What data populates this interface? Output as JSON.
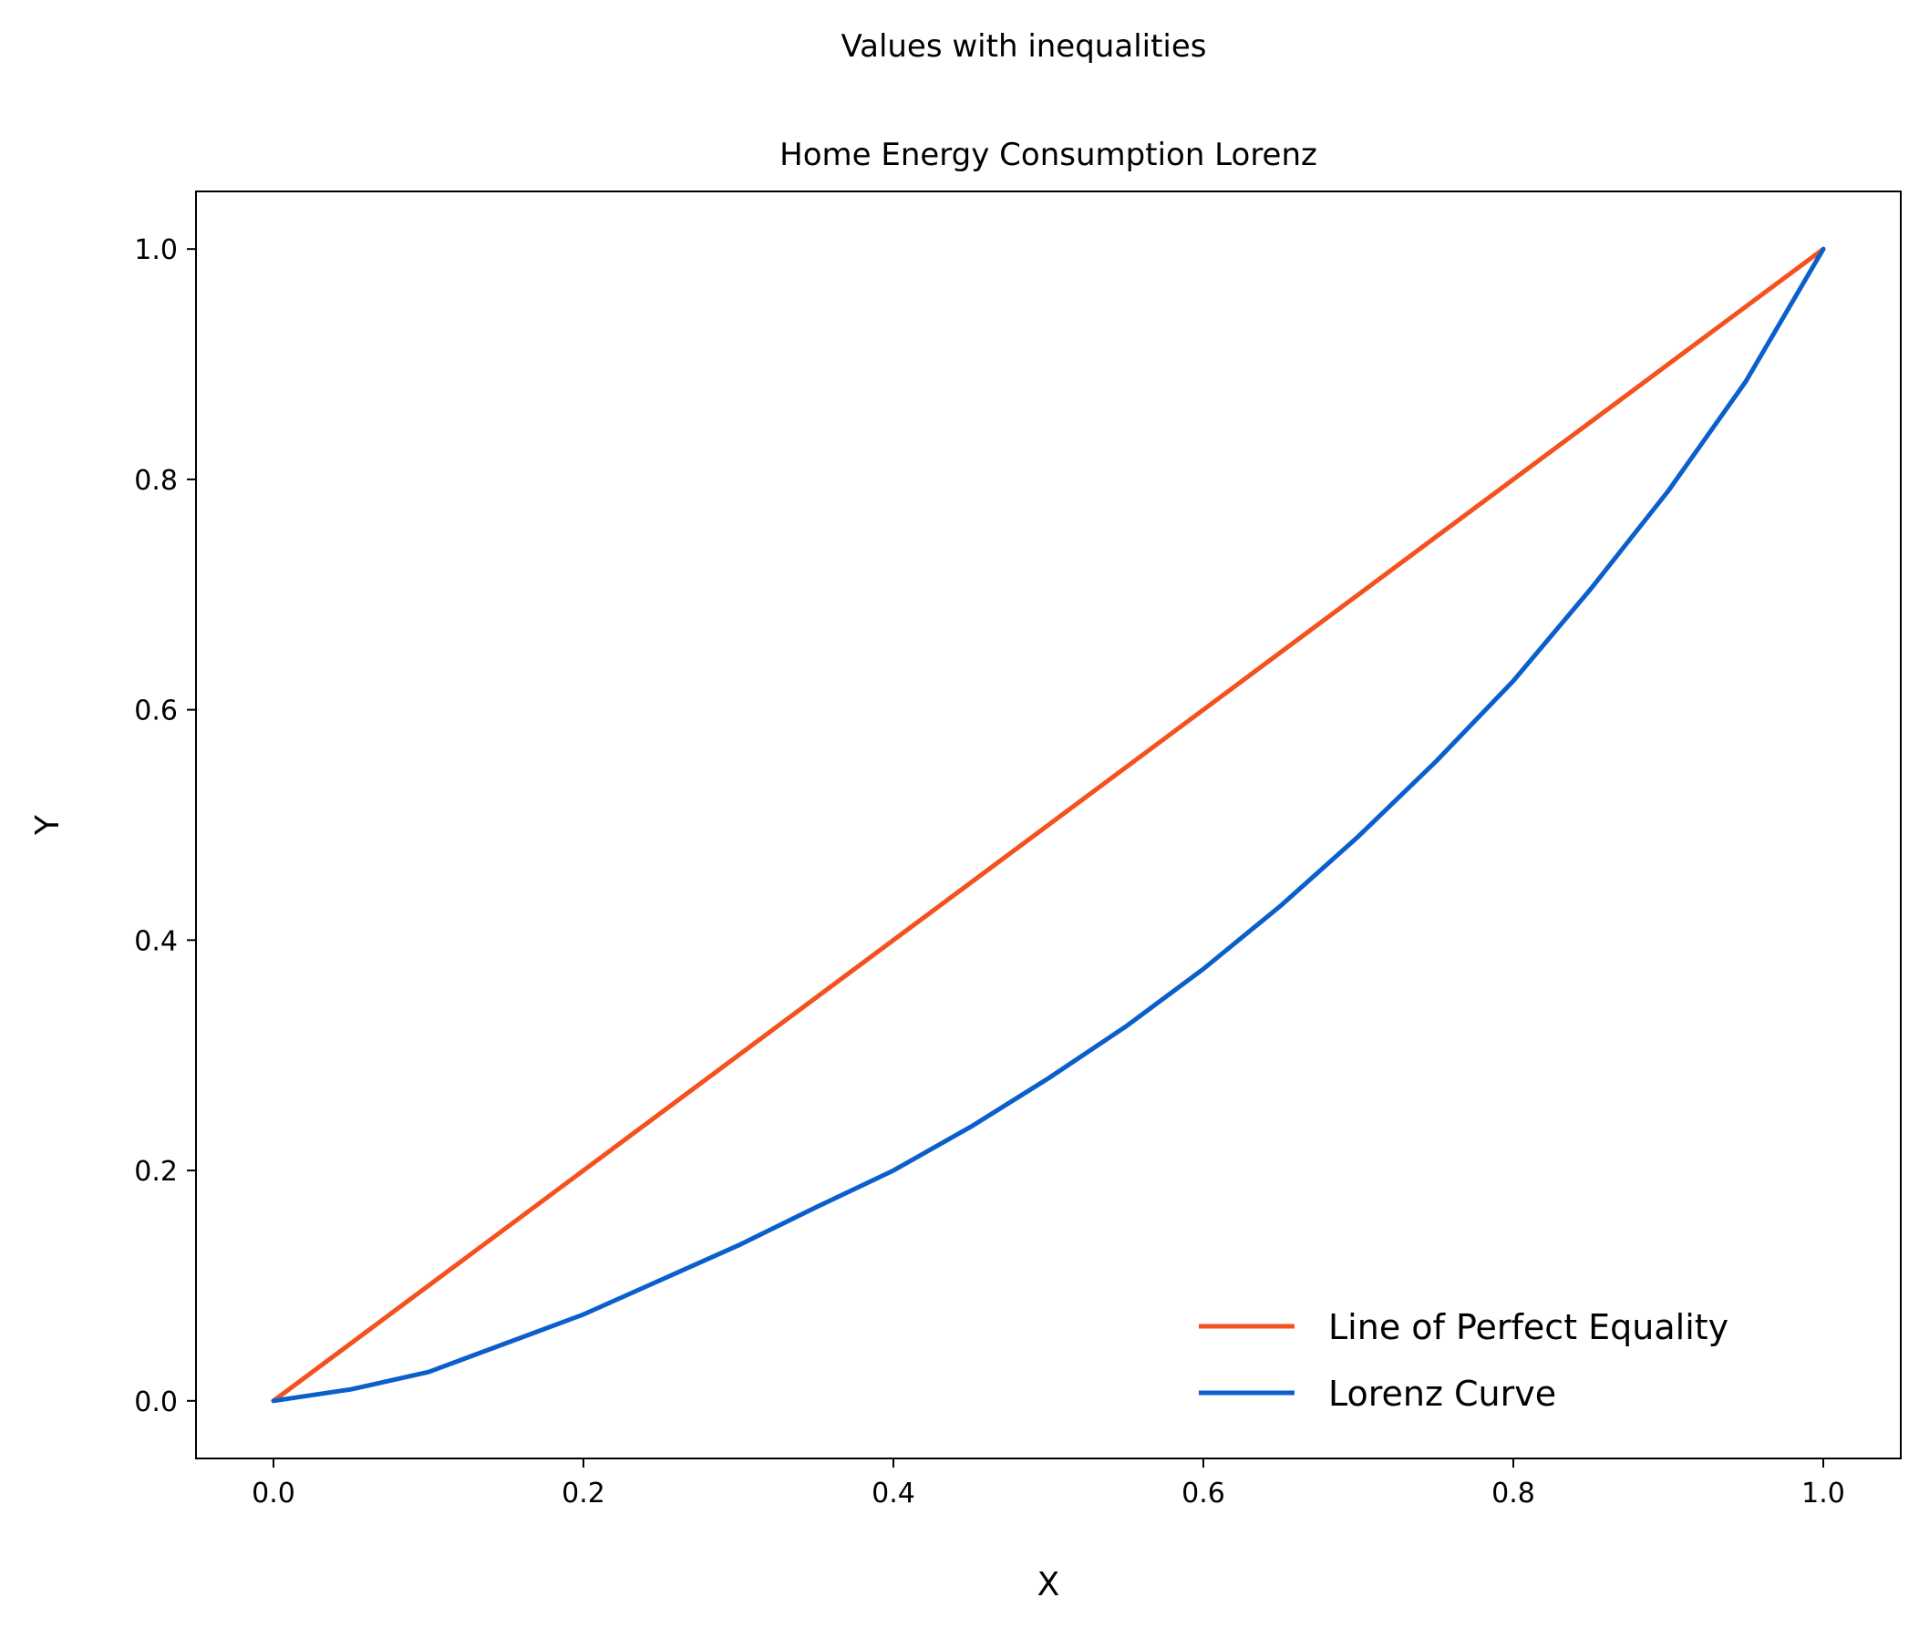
{
  "chart_data": {
    "type": "line",
    "suptitle": "Values with inequalities",
    "title": "Home Energy Consumption Lorenz",
    "xlabel": "X",
    "ylabel": "Y",
    "xlim": [
      -0.05,
      1.05
    ],
    "ylim": [
      -0.05,
      1.05
    ],
    "x_ticks": [
      0.0,
      0.2,
      0.4,
      0.6,
      0.8,
      1.0
    ],
    "x_tick_labels": [
      "0.0",
      "0.2",
      "0.4",
      "0.6",
      "0.8",
      "1.0"
    ],
    "y_ticks": [
      0.0,
      0.2,
      0.4,
      0.6,
      0.8,
      1.0
    ],
    "y_tick_labels": [
      "0.0",
      "0.2",
      "0.4",
      "0.6",
      "0.8",
      "1.0"
    ],
    "grid": false,
    "legend_position": "lower right",
    "series": [
      {
        "name": "Line of Perfect Equality",
        "color": "#f4511e",
        "x": [
          0.0,
          1.0
        ],
        "y": [
          0.0,
          1.0
        ]
      },
      {
        "name": "Lorenz Curve",
        "color": "#0a5fcc",
        "x": [
          0.0,
          0.05,
          0.1,
          0.15,
          0.2,
          0.25,
          0.3,
          0.35,
          0.4,
          0.45,
          0.5,
          0.55,
          0.6,
          0.65,
          0.7,
          0.75,
          0.8,
          0.85,
          0.9,
          0.95,
          1.0
        ],
        "y": [
          0.0,
          0.01,
          0.025,
          0.05,
          0.075,
          0.105,
          0.135,
          0.168,
          0.2,
          0.238,
          0.28,
          0.325,
          0.375,
          0.43,
          0.49,
          0.555,
          0.625,
          0.705,
          0.79,
          0.885,
          1.0
        ]
      }
    ]
  }
}
